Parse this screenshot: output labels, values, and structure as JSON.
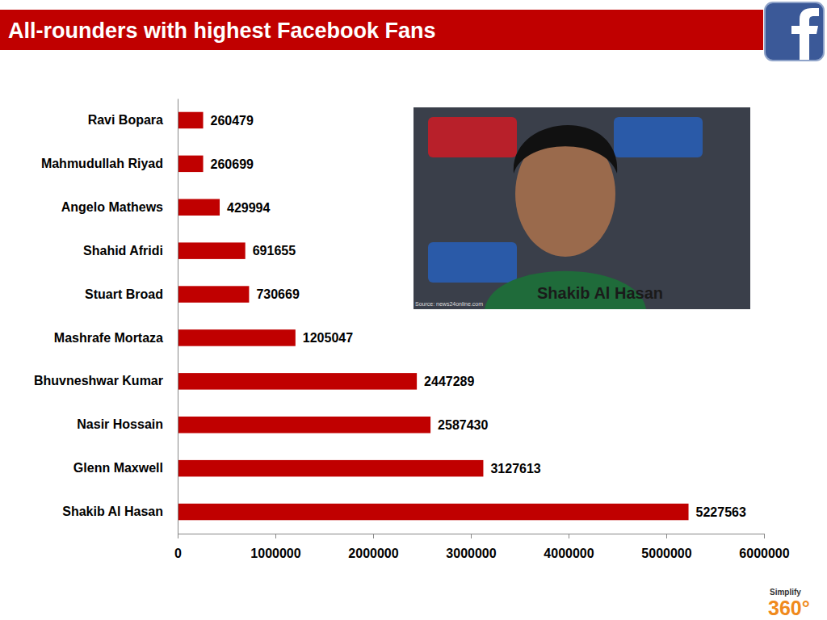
{
  "chart_data": {
    "type": "bar",
    "title": "All-rounders with highest Facebook Fans",
    "orientation": "horizontal",
    "categories": [
      "Ravi Bopara",
      "Mahmudullah Riyad",
      "Angelo Mathews",
      "Shahid Afridi",
      "Stuart Broad",
      "Mashrafe Mortaza",
      "Bhuvneshwar Kumar",
      "Nasir Hossain",
      "Glenn Maxwell",
      "Shakib Al Hasan"
    ],
    "values": [
      260479,
      260699,
      429994,
      691655,
      730669,
      1205047,
      2447289,
      2587430,
      3127613,
      5227563
    ],
    "color": "#c00000",
    "xlim": [
      0,
      6000000
    ],
    "xticks": [
      0,
      1000000,
      2000000,
      3000000,
      4000000,
      5000000,
      6000000
    ],
    "grid": false,
    "data_labels": true,
    "annotations": [
      "Shakib Al Hasan",
      "Source: news24online.com",
      "Simplify",
      "360°"
    ]
  }
}
